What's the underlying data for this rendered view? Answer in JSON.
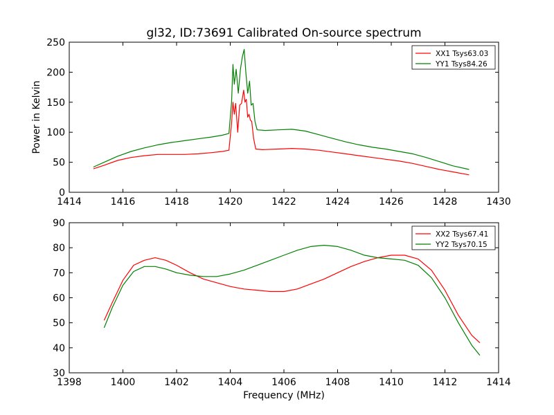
{
  "title": "gl32, ID:73691 Calibrated On-source spectrum",
  "colors": {
    "xx": "#ff0000",
    "yy": "#008000"
  },
  "chart_data": [
    {
      "type": "line",
      "ylabel": "Power in Kelvin",
      "xlabel": "",
      "xlim": [
        1414,
        1430
      ],
      "ylim": [
        0,
        250
      ],
      "xticks": [
        1414,
        1416,
        1418,
        1420,
        1422,
        1424,
        1426,
        1428,
        1430
      ],
      "yticks": [
        0,
        50,
        100,
        150,
        200,
        250
      ],
      "legend_position": "top-right",
      "series": [
        {
          "name": "XX1 Tsys63.03",
          "color": "#ff0000",
          "x": [
            1414.9,
            1415.3,
            1415.8,
            1416.3,
            1416.8,
            1417.3,
            1417.8,
            1418.3,
            1418.8,
            1419.3,
            1419.7,
            1419.95,
            1420.05,
            1420.1,
            1420.15,
            1420.2,
            1420.28,
            1420.35,
            1420.42,
            1420.5,
            1420.55,
            1420.6,
            1420.65,
            1420.7,
            1420.75,
            1420.8,
            1420.87,
            1420.95,
            1421.2,
            1421.8,
            1422.3,
            1422.8,
            1423.3,
            1423.8,
            1424.3,
            1424.8,
            1425.3,
            1425.8,
            1426.3,
            1426.8,
            1427.3,
            1427.8,
            1428.3,
            1428.9
          ],
          "y": [
            39,
            45,
            53,
            58,
            61,
            63,
            63,
            63,
            64,
            66,
            68,
            70,
            115,
            150,
            130,
            148,
            100,
            145,
            148,
            170,
            150,
            155,
            125,
            130,
            120,
            118,
            90,
            72,
            71,
            72,
            73,
            72,
            70,
            67,
            64,
            61,
            58,
            55,
            52,
            48,
            43,
            38,
            34,
            29
          ]
        },
        {
          "name": "YY1 Tsys84.26",
          "color": "#008000",
          "x": [
            1414.9,
            1415.3,
            1415.8,
            1416.3,
            1416.8,
            1417.3,
            1417.8,
            1418.3,
            1418.8,
            1419.3,
            1419.7,
            1419.95,
            1420.05,
            1420.1,
            1420.15,
            1420.22,
            1420.3,
            1420.38,
            1420.45,
            1420.52,
            1420.58,
            1420.65,
            1420.72,
            1420.78,
            1420.85,
            1420.92,
            1421.0,
            1421.3,
            1421.8,
            1422.3,
            1422.8,
            1423.3,
            1423.8,
            1424.3,
            1424.8,
            1425.3,
            1425.8,
            1426.3,
            1426.8,
            1427.3,
            1427.8,
            1428.3,
            1428.9
          ],
          "y": [
            42,
            50,
            60,
            68,
            74,
            79,
            83,
            86,
            89,
            92,
            95,
            98,
            150,
            213,
            180,
            205,
            165,
            205,
            225,
            238,
            200,
            165,
            185,
            145,
            148,
            118,
            104,
            103,
            104,
            105,
            102,
            96,
            90,
            84,
            79,
            75,
            72,
            68,
            64,
            58,
            51,
            44,
            38
          ]
        }
      ]
    },
    {
      "type": "line",
      "ylabel": "",
      "xlabel": "Frequency (MHz)",
      "xlim": [
        1398,
        1414
      ],
      "ylim": [
        30,
        90
      ],
      "xticks": [
        1398,
        1400,
        1402,
        1404,
        1406,
        1408,
        1410,
        1412,
        1414
      ],
      "yticks": [
        30,
        40,
        50,
        60,
        70,
        80,
        90
      ],
      "legend_position": "top-right",
      "series": [
        {
          "name": "XX2 Tsys67.41",
          "color": "#ff0000",
          "x": [
            1399.3,
            1399.6,
            1400.0,
            1400.4,
            1400.8,
            1401.2,
            1401.6,
            1402.0,
            1402.5,
            1403.0,
            1403.5,
            1404.0,
            1404.5,
            1405.0,
            1405.5,
            1406.0,
            1406.5,
            1407.0,
            1407.5,
            1408.0,
            1408.5,
            1409.0,
            1409.5,
            1410.0,
            1410.5,
            1411.0,
            1411.5,
            1412.0,
            1412.5,
            1413.0,
            1413.3
          ],
          "y": [
            51,
            58,
            67,
            73,
            75,
            76,
            75,
            73,
            70,
            67.5,
            66,
            64.5,
            63.5,
            63,
            62.5,
            62.5,
            63.5,
            65.5,
            67.5,
            70,
            72.5,
            74.5,
            76,
            77,
            77,
            75.5,
            71,
            63,
            53,
            45,
            42
          ]
        },
        {
          "name": "YY2 Tsys70.15",
          "color": "#008000",
          "x": [
            1399.3,
            1399.6,
            1400.0,
            1400.4,
            1400.8,
            1401.2,
            1401.6,
            1402.0,
            1402.5,
            1403.0,
            1403.5,
            1404.0,
            1404.5,
            1405.0,
            1405.5,
            1406.0,
            1406.5,
            1407.0,
            1407.5,
            1408.0,
            1408.5,
            1409.0,
            1409.5,
            1410.0,
            1410.5,
            1411.0,
            1411.5,
            1412.0,
            1412.5,
            1413.0,
            1413.3
          ],
          "y": [
            48,
            56,
            65,
            70.5,
            72.5,
            72.5,
            71.5,
            70,
            69,
            68.5,
            68.5,
            69.5,
            71,
            73,
            75,
            77,
            79,
            80.5,
            81,
            80.5,
            79,
            77,
            76,
            75.5,
            75,
            73,
            68,
            60,
            50,
            41,
            37
          ]
        }
      ]
    }
  ]
}
